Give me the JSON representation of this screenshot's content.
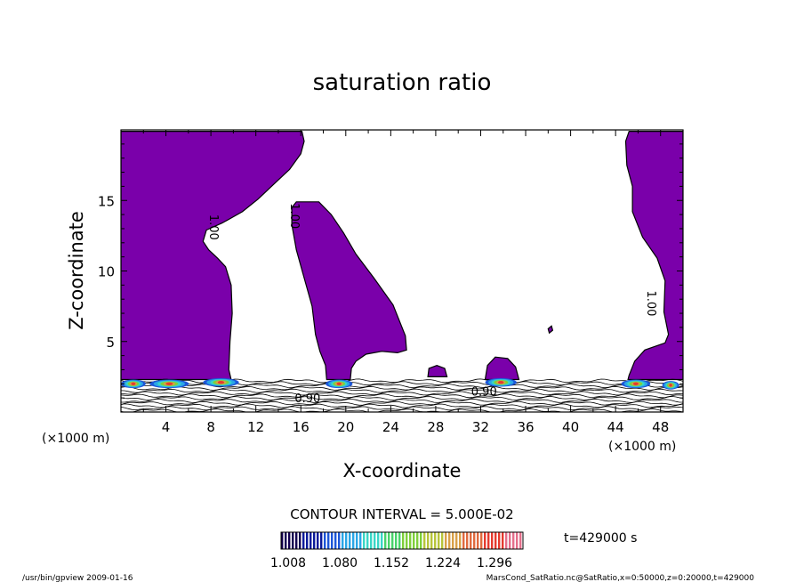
{
  "chart_data": {
    "type": "contour",
    "title": "saturation ratio",
    "xlabel": "X-coordinate",
    "ylabel": "Z-coordinate",
    "x_unit_left": "(×1000 m)",
    "x_unit_right": "(×1000 m)",
    "xlim": [
      0,
      50
    ],
    "ylim": [
      0,
      20
    ],
    "x_ticks": [
      4,
      8,
      12,
      16,
      20,
      24,
      28,
      32,
      36,
      40,
      44,
      48
    ],
    "y_ticks": [
      5,
      10,
      15
    ],
    "contour_labels": [
      {
        "text": "1.00",
        "x": 8.2,
        "y": 13.1,
        "angle": 90
      },
      {
        "text": "1.00",
        "x": 15.4,
        "y": 13.9,
        "angle": 90
      },
      {
        "text": "1.00",
        "x": 47.1,
        "y": 7.7,
        "angle": 90
      },
      {
        "text": "0.90",
        "x": 16.6,
        "y": 0.9,
        "angle": 0
      },
      {
        "text": "0.90",
        "x": 32.3,
        "y": 1.4,
        "angle": 0
      }
    ],
    "contour_interval": "CONTOUR INTERVAL = 5.000E-02",
    "time_label": "t=429000 s",
    "colorbar": {
      "ticks": [
        "1.008",
        "1.080",
        "1.152",
        "1.224",
        "1.296"
      ],
      "colors": [
        "#120050",
        "#0a1a9a",
        "#1c56d8",
        "#2aa6e6",
        "#39d6c6",
        "#48d26a",
        "#7fcf3a",
        "#b7c43a",
        "#d8a048",
        "#e06a3e",
        "#e53a2e",
        "#e46e8a"
      ]
    },
    "fill_color": "#7a00aa",
    "line_color": "#000000",
    "regions": [
      {
        "name": "left-column",
        "points": [
          [
            0,
            19.9
          ],
          [
            16.1,
            19.9
          ],
          [
            16.3,
            19.2
          ],
          [
            16.0,
            18.3
          ],
          [
            15.0,
            17.2
          ],
          [
            13.8,
            16.3
          ],
          [
            12.2,
            15.1
          ],
          [
            10.8,
            14.2
          ],
          [
            9.0,
            13.4
          ],
          [
            7.6,
            12.9
          ],
          [
            7.3,
            12.1
          ],
          [
            7.8,
            11.5
          ],
          [
            8.6,
            10.9
          ],
          [
            9.3,
            10.3
          ],
          [
            9.8,
            9.0
          ],
          [
            9.9,
            7.0
          ],
          [
            9.7,
            5.0
          ],
          [
            9.6,
            3.0
          ],
          [
            9.8,
            2.3
          ],
          [
            0,
            2.3
          ]
        ]
      },
      {
        "name": "middle-column",
        "points": [
          [
            15.6,
            14.9
          ],
          [
            17.6,
            14.9
          ],
          [
            18.7,
            14.0
          ],
          [
            19.8,
            12.7
          ],
          [
            20.9,
            11.2
          ],
          [
            22.5,
            9.5
          ],
          [
            24.2,
            7.6
          ],
          [
            25.3,
            5.4
          ],
          [
            25.4,
            4.4
          ],
          [
            24.6,
            4.2
          ],
          [
            23.2,
            4.3
          ],
          [
            21.8,
            4.1
          ],
          [
            20.9,
            3.6
          ],
          [
            20.5,
            3.1
          ],
          [
            20.4,
            2.3
          ],
          [
            18.3,
            2.3
          ],
          [
            18.2,
            3.3
          ],
          [
            17.7,
            4.3
          ],
          [
            17.3,
            5.5
          ],
          [
            17.0,
            7.5
          ],
          [
            16.3,
            9.5
          ],
          [
            15.6,
            11.5
          ],
          [
            15.2,
            13.3
          ],
          [
            15.2,
            14.5
          ]
        ]
      },
      {
        "name": "bump-28",
        "points": [
          [
            27.3,
            2.5
          ],
          [
            27.4,
            3.1
          ],
          [
            28.1,
            3.3
          ],
          [
            28.8,
            3.1
          ],
          [
            29.0,
            2.5
          ]
        ]
      },
      {
        "name": "bump-34",
        "points": [
          [
            32.4,
            2.3
          ],
          [
            32.6,
            3.3
          ],
          [
            33.3,
            3.9
          ],
          [
            34.4,
            3.8
          ],
          [
            35.1,
            3.2
          ],
          [
            35.4,
            2.3
          ]
        ]
      },
      {
        "name": "dot-38",
        "points": [
          [
            38.0,
            5.9
          ],
          [
            38.3,
            6.1
          ],
          [
            38.4,
            5.8
          ],
          [
            38.1,
            5.6
          ]
        ]
      },
      {
        "name": "right-column",
        "points": [
          [
            50,
            19.9
          ],
          [
            45.2,
            19.9
          ],
          [
            44.9,
            19.2
          ],
          [
            45.0,
            17.5
          ],
          [
            45.5,
            16.0
          ],
          [
            45.5,
            14.2
          ],
          [
            46.4,
            12.4
          ],
          [
            47.7,
            10.9
          ],
          [
            48.4,
            9.3
          ],
          [
            48.3,
            7.1
          ],
          [
            48.7,
            5.5
          ],
          [
            48.4,
            4.9
          ],
          [
            46.6,
            4.4
          ],
          [
            45.7,
            3.6
          ],
          [
            45.2,
            2.6
          ],
          [
            45.1,
            2.3
          ],
          [
            50,
            2.3
          ]
        ]
      }
    ]
  },
  "footer": {
    "left": "/usr/bin/gpview  2009-01-16",
    "right": "MarsCond_SatRatio.nc@SatRatio,x=0:50000,z=0:20000,t=429000"
  }
}
